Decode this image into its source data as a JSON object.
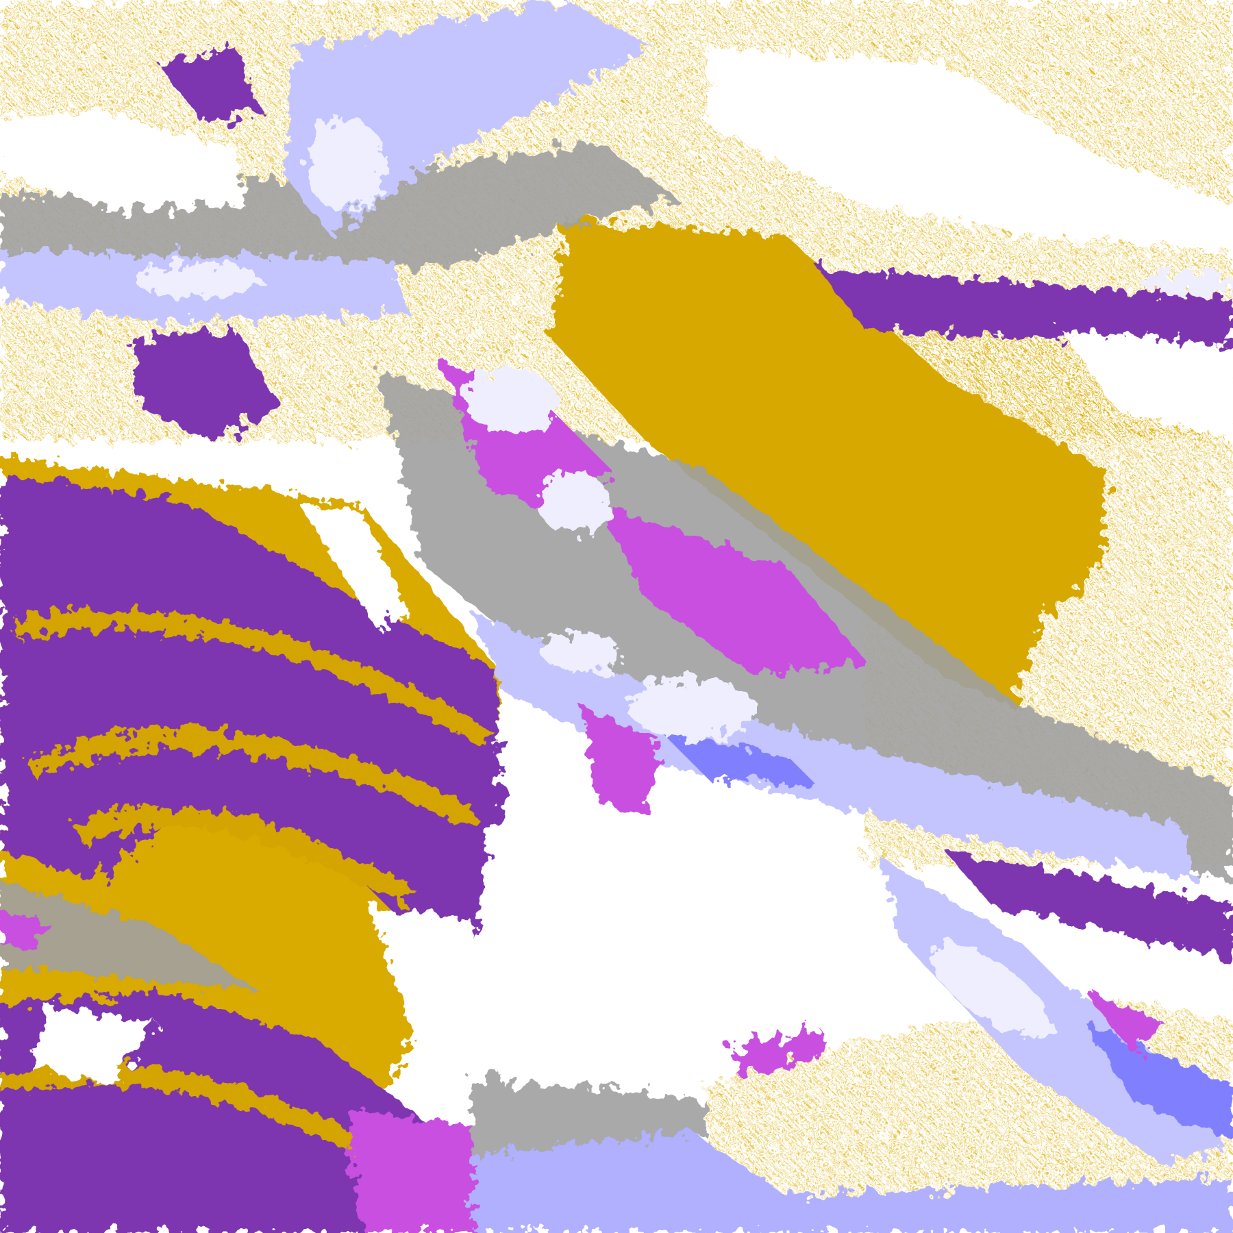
{
  "map": {
    "palette": {
      "background": "#ffffff",
      "gold": "#dcae00",
      "dark_gold": "#c09000",
      "purple": "#7d35b0",
      "magenta": "#c850e0",
      "gray": "#a0a0a0",
      "light_blue": "#c4c4ff",
      "blue": "#8080ff",
      "pale": "#eeeeff"
    }
  }
}
